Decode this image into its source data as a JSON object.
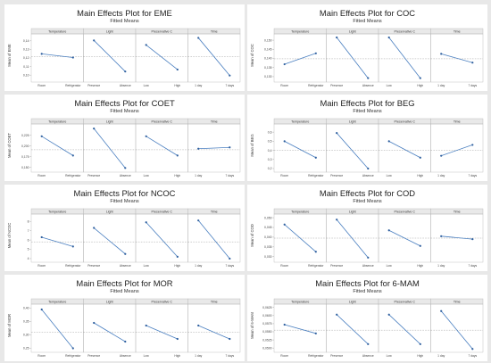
{
  "chart_data": [
    {
      "type": "line",
      "title": "Main Effects Plot for EME",
      "subtitle": "Fitted Means",
      "ylabel": "Mean of EME",
      "yticks": [
        "0,14",
        "0,13",
        "0,12",
        "0,11",
        "0,10"
      ],
      "ylim": [
        0.095,
        0.145
      ],
      "reference_mean": 0.1215,
      "factors": [
        {
          "name": "Temperature",
          "levels": [
            "Room",
            "Refrigerator"
          ],
          "values": [
            0.1248,
            0.1205
          ]
        },
        {
          "name": "Light",
          "levels": [
            "Presence",
            "Absence"
          ],
          "values": [
            0.1405,
            0.1042
          ]
        },
        {
          "name": "Preservative C",
          "levels": [
            "Low",
            "High"
          ],
          "values": [
            0.1352,
            0.1065
          ]
        },
        {
          "name": "Time",
          "levels": [
            "1 day",
            "7 days"
          ],
          "values": [
            0.1435,
            0.0995
          ]
        }
      ]
    },
    {
      "type": "line",
      "title": "Main Effects Plot for COC",
      "subtitle": "Fitted Means",
      "ylabel": "Mean of COC",
      "yticks": [
        "0,150",
        "0,145",
        "0,140",
        "0,135",
        "0,130"
      ],
      "ylim": [
        0.1285,
        0.152
      ],
      "reference_mean": 0.1398,
      "factors": [
        {
          "name": "Temperature",
          "levels": [
            "Room",
            "Refrigerator"
          ],
          "values": [
            0.1368,
            0.1428
          ]
        },
        {
          "name": "Light",
          "levels": [
            "Presence",
            "Absence"
          ],
          "values": [
            0.1515,
            0.1292
          ]
        },
        {
          "name": "Preservative C",
          "levels": [
            "Low",
            "High"
          ],
          "values": [
            0.1515,
            0.1292
          ]
        },
        {
          "name": "Time",
          "levels": [
            "1 day",
            "7 days"
          ],
          "values": [
            0.1425,
            0.1377
          ]
        }
      ]
    },
    {
      "type": "line",
      "title": "Main Effects Plot for COET",
      "subtitle": "Fitted Means",
      "ylabel": "Mean of COET",
      "yticks": [
        "0,250",
        "0,225",
        "0,200",
        "0,175",
        "0,150"
      ],
      "ylim": [
        0.145,
        0.245
      ],
      "reference_mean": 0.191,
      "factors": [
        {
          "name": "Temperature",
          "levels": [
            "Room",
            "Refrigerator"
          ],
          "values": [
            0.2225,
            0.1775
          ]
        },
        {
          "name": "Light",
          "levels": [
            "Presence",
            "Absence"
          ],
          "values": [
            0.2405,
            0.1485
          ]
        },
        {
          "name": "Preservative C",
          "levels": [
            "Low",
            "High"
          ],
          "values": [
            0.2225,
            0.1775
          ]
        },
        {
          "name": "Time",
          "levels": [
            "1 day",
            "7 days"
          ],
          "values": [
            0.1935,
            0.1965
          ]
        }
      ]
    },
    {
      "type": "line",
      "title": "Main Effects Plot for BEG",
      "subtitle": "Fitted Means",
      "ylabel": "Mean of BEG",
      "yticks": [
        "0,6",
        "0,5",
        "0,4",
        "0,3",
        "0,2"
      ],
      "ylim": [
        0.19,
        0.66
      ],
      "reference_mean": 0.4,
      "factors": [
        {
          "name": "Temperature",
          "levels": [
            "Room",
            "Refrigerator"
          ],
          "values": [
            0.5,
            0.32
          ]
        },
        {
          "name": "Light",
          "levels": [
            "Presence",
            "Absence"
          ],
          "values": [
            0.59,
            0.2
          ]
        },
        {
          "name": "Preservative C",
          "levels": [
            "Low",
            "High"
          ],
          "values": [
            0.5,
            0.32
          ]
        },
        {
          "name": "Time",
          "levels": [
            "1 day",
            "7 days"
          ],
          "values": [
            0.34,
            0.46
          ]
        }
      ]
    },
    {
      "type": "line",
      "title": "Main Effects Plot for NCOC",
      "subtitle": "Fitted Means",
      "ylabel": "Mean of NCOC",
      "yticks": [
        "8",
        "7",
        "6",
        "5",
        "4"
      ],
      "ylim": [
        3.9,
        8.5
      ],
      "reference_mean": 5.8,
      "factors": [
        {
          "name": "Temperature",
          "levels": [
            "Room",
            "Refrigerator"
          ],
          "values": [
            6.3,
            5.3
          ]
        },
        {
          "name": "Light",
          "levels": [
            "Presence",
            "Absence"
          ],
          "values": [
            7.3,
            4.5
          ]
        },
        {
          "name": "Preservative C",
          "levels": [
            "Low",
            "High"
          ],
          "values": [
            7.9,
            4.2
          ]
        },
        {
          "name": "Time",
          "levels": [
            "1 day",
            "7 days"
          ],
          "values": [
            8.1,
            4.0
          ]
        }
      ]
    },
    {
      "type": "line",
      "title": "Main Effects Plot for COD",
      "subtitle": "Fitted Means",
      "ylabel": "Mean of COD",
      "yticks": [
        "0,050",
        "0,045",
        "0,040",
        "0,035",
        "0,030"
      ],
      "ylim": [
        0.0285,
        0.0505
      ],
      "reference_mean": 0.0395,
      "factors": [
        {
          "name": "Temperature",
          "levels": [
            "Room",
            "Refrigerator"
          ],
          "values": [
            0.0465,
            0.0325
          ]
        },
        {
          "name": "Light",
          "levels": [
            "Presence",
            "Absence"
          ],
          "values": [
            0.049,
            0.0295
          ]
        },
        {
          "name": "Preservative C",
          "levels": [
            "Low",
            "High"
          ],
          "values": [
            0.0435,
            0.0355
          ]
        },
        {
          "name": "Time",
          "levels": [
            "1 day",
            "7 days"
          ],
          "values": [
            0.0405,
            0.039
          ]
        }
      ]
    },
    {
      "type": "line",
      "title": "Main Effects Plot for MOR",
      "subtitle": "Fitted Means",
      "ylabel": "Mean of MOR",
      "yticks": [
        "0,40",
        "0,35",
        "0,30",
        "0,25"
      ],
      "ylim": [
        0.245,
        0.405
      ],
      "reference_mean": 0.31,
      "factors": [
        {
          "name": "Temperature",
          "levels": [
            "Room",
            "Refrigerator"
          ],
          "values": [
            0.395,
            0.25
          ]
        },
        {
          "name": "Light",
          "levels": [
            "Presence",
            "Absence"
          ],
          "values": [
            0.345,
            0.275
          ]
        },
        {
          "name": "Preservative C",
          "levels": [
            "Low",
            "High"
          ],
          "values": [
            0.335,
            0.285
          ]
        },
        {
          "name": "Time",
          "levels": [
            "1 day",
            "7 days"
          ],
          "values": [
            0.335,
            0.285
          ]
        }
      ]
    },
    {
      "type": "line",
      "title": "Main Effects Plot for 6-MAM",
      "subtitle": "Fitted Means",
      "ylabel": "Mean of 6-MAM",
      "yticks": [
        "0,0625",
        "0,0600",
        "0,0575",
        "0,0550",
        "0,0525",
        "0,0500"
      ],
      "ylim": [
        0.0495,
        0.0627
      ],
      "reference_mean": 0.0555,
      "factors": [
        {
          "name": "Temperature",
          "levels": [
            "Room",
            "Refrigerator"
          ],
          "values": [
            0.0572,
            0.0545
          ]
        },
        {
          "name": "Light",
          "levels": [
            "Presence",
            "Absence"
          ],
          "values": [
            0.0603,
            0.0512
          ]
        },
        {
          "name": "Preservative C",
          "levels": [
            "Low",
            "High"
          ],
          "values": [
            0.0603,
            0.0512
          ]
        },
        {
          "name": "Time",
          "levels": [
            "1 day",
            "7 days"
          ],
          "values": [
            0.0614,
            0.0497
          ]
        }
      ]
    }
  ]
}
